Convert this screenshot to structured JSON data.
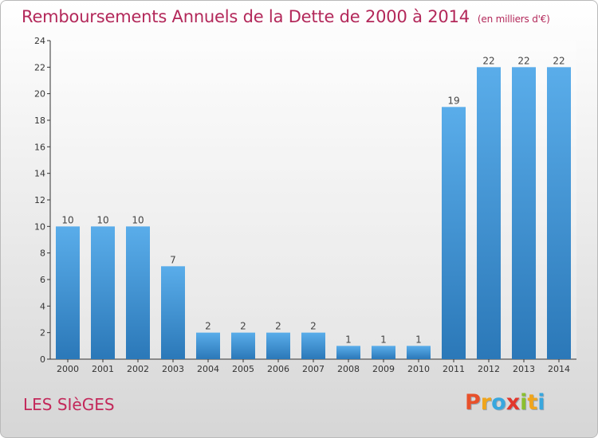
{
  "title": "Remboursements Annuels de la Dette de 2000 à 2014",
  "unit_note": "(en milliers d'€)",
  "commune": "LES SIèGES",
  "logo": {
    "letters": [
      "P",
      "r",
      "o",
      "x",
      "i",
      "t",
      "i"
    ],
    "colors": [
      "#e8512b",
      "#f0a51c",
      "#38a7de",
      "#e2362b",
      "#8bbf2f",
      "#f0a51c",
      "#38a7de"
    ]
  },
  "chart_data": {
    "type": "bar",
    "categories": [
      "2000",
      "2001",
      "2002",
      "2003",
      "2004",
      "2005",
      "2006",
      "2007",
      "2008",
      "2009",
      "2010",
      "2011",
      "2012",
      "2013",
      "2014"
    ],
    "values": [
      10,
      10,
      10,
      7,
      2,
      2,
      2,
      2,
      1,
      1,
      1,
      19,
      22,
      22,
      22
    ],
    "ylim": [
      0,
      24
    ],
    "yticks": [
      0,
      2,
      4,
      6,
      8,
      10,
      12,
      14,
      16,
      18,
      20,
      22,
      24
    ],
    "grid": false,
    "bar_color": "#3d96dc"
  }
}
